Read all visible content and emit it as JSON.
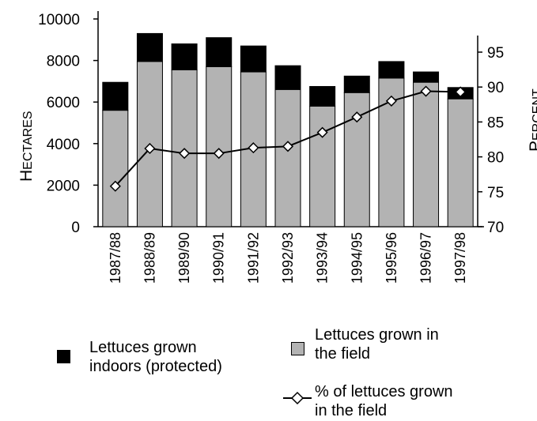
{
  "chart_data": {
    "type": "bar",
    "categories": [
      "1987/88",
      "1988/89",
      "1989/90",
      "1990/91",
      "1991/92",
      "1992/93",
      "1993/94",
      "1994/95",
      "1995/96",
      "1996/97",
      "1997/98"
    ],
    "series": [
      {
        "name": "Lettuces grown in the field",
        "type": "bar",
        "axis": "left",
        "stack": "total",
        "color": "#b3b3b3",
        "values": [
          5600,
          7950,
          7550,
          7700,
          7450,
          6600,
          5800,
          6450,
          7150,
          6950,
          6150
        ]
      },
      {
        "name": "Lettuces grown indoors (protected)",
        "type": "bar",
        "axis": "left",
        "stack": "total",
        "color": "#000000",
        "values": [
          1350,
          1350,
          1250,
          1400,
          1250,
          1150,
          950,
          800,
          800,
          500,
          550
        ]
      },
      {
        "name": "% of lettuces grown in the field",
        "type": "line",
        "axis": "right",
        "color": "#000000",
        "marker": "diamond",
        "values": [
          75.8,
          81.2,
          80.5,
          80.5,
          81.3,
          81.5,
          83.5,
          85.7,
          88.0,
          89.4,
          89.3
        ]
      }
    ],
    "y_left": {
      "label_first": "H",
      "label_rest": "ECTARES",
      "ylim": [
        0,
        10000
      ],
      "ticks": [
        "0",
        "2000",
        "4000",
        "6000",
        "8000",
        "10000"
      ]
    },
    "y_right": {
      "label_first": "P",
      "label_rest": "ERCENT",
      "ylim": [
        70,
        100
      ],
      "ticks": [
        "70",
        "75",
        "80",
        "85",
        "90",
        "95"
      ]
    },
    "grid": false,
    "legend_placement": "bottom"
  },
  "legend": {
    "indoors": "Lettuces grown\nindoors (protected)",
    "field": "Lettuces grown in\nthe field",
    "percent": "% of lettuces grown\nin the field"
  }
}
